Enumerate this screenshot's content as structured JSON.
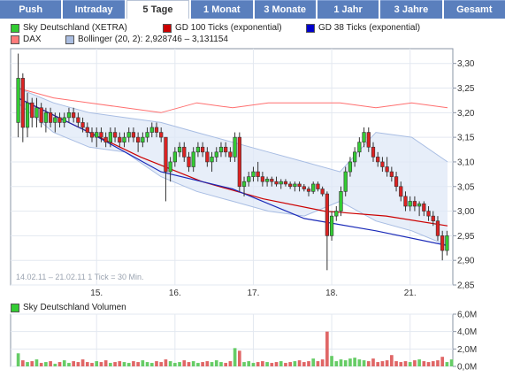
{
  "tabs": [
    {
      "label": "Push",
      "active": false
    },
    {
      "label": "Intraday",
      "active": false
    },
    {
      "label": "5 Tage",
      "active": true
    },
    {
      "label": "1 Monat",
      "active": false
    },
    {
      "label": "3 Monate",
      "active": false
    },
    {
      "label": "1 Jahr",
      "active": false
    },
    {
      "label": "3 Jahre",
      "active": false
    },
    {
      "label": "Gesamt",
      "active": false
    }
  ],
  "legend": [
    {
      "label": "Sky Deutschland (XETRA)",
      "color": "#33cc33"
    },
    {
      "label": "GD 100 Ticks (exponential)",
      "color": "#cc0000"
    },
    {
      "label": "GD 38 Ticks (exponential)",
      "color": "#0000cc"
    },
    {
      "label": "DAX",
      "color": "#ff7b7b"
    },
    {
      "label": "Bollinger (20, 2): 2,928746 – 3,131154",
      "color": "#aabde0"
    }
  ],
  "info_text": "14.02.11 – 21.02.11    1 Tick = 30 Min.",
  "volume_legend": {
    "label": "Sky Deutschland Volumen",
    "color": "#33cc33"
  },
  "chart_data": [
    {
      "type": "candlestick",
      "title": "Sky Deutschland (XETRA)",
      "ylim": [
        2.85,
        3.33
      ],
      "y_ticks": [
        "3,30",
        "3,25",
        "3,20",
        "3,15",
        "3,10",
        "3,05",
        "3,00",
        "2,95",
        "2,90",
        "2,85"
      ],
      "y_tick_values": [
        3.3,
        3.25,
        3.2,
        3.15,
        3.1,
        3.05,
        3.0,
        2.95,
        2.9,
        2.85
      ],
      "x_ticks": [
        "15.",
        "16.",
        "17.",
        "18.",
        "21."
      ],
      "x_tick_index": [
        17,
        34,
        51,
        68,
        85
      ],
      "grid": true,
      "candles": [
        {
          "o": 3.18,
          "h": 3.32,
          "l": 3.15,
          "c": 3.27
        },
        {
          "o": 3.27,
          "h": 3.28,
          "l": 3.14,
          "c": 3.17
        },
        {
          "o": 3.17,
          "h": 3.24,
          "l": 3.15,
          "c": 3.22
        },
        {
          "o": 3.22,
          "h": 3.23,
          "l": 3.17,
          "c": 3.19
        },
        {
          "o": 3.19,
          "h": 3.23,
          "l": 3.17,
          "c": 3.21
        },
        {
          "o": 3.21,
          "h": 3.22,
          "l": 3.17,
          "c": 3.18
        },
        {
          "o": 3.18,
          "h": 3.21,
          "l": 3.16,
          "c": 3.2
        },
        {
          "o": 3.2,
          "h": 3.21,
          "l": 3.17,
          "c": 3.18
        },
        {
          "o": 3.18,
          "h": 3.2,
          "l": 3.16,
          "c": 3.19
        },
        {
          "o": 3.19,
          "h": 3.2,
          "l": 3.17,
          "c": 3.18
        },
        {
          "o": 3.18,
          "h": 3.2,
          "l": 3.17,
          "c": 3.19
        },
        {
          "o": 3.19,
          "h": 3.21,
          "l": 3.18,
          "c": 3.2
        },
        {
          "o": 3.2,
          "h": 3.21,
          "l": 3.18,
          "c": 3.19
        },
        {
          "o": 3.19,
          "h": 3.2,
          "l": 3.17,
          "c": 3.18
        },
        {
          "o": 3.18,
          "h": 3.19,
          "l": 3.16,
          "c": 3.17
        },
        {
          "o": 3.17,
          "h": 3.18,
          "l": 3.15,
          "c": 3.16
        },
        {
          "o": 3.16,
          "h": 3.17,
          "l": 3.14,
          "c": 3.15
        },
        {
          "o": 3.15,
          "h": 3.17,
          "l": 3.13,
          "c": 3.16
        },
        {
          "o": 3.16,
          "h": 3.17,
          "l": 3.14,
          "c": 3.15
        },
        {
          "o": 3.15,
          "h": 3.16,
          "l": 3.13,
          "c": 3.14
        },
        {
          "o": 3.14,
          "h": 3.17,
          "l": 3.13,
          "c": 3.16
        },
        {
          "o": 3.16,
          "h": 3.17,
          "l": 3.14,
          "c": 3.15
        },
        {
          "o": 3.15,
          "h": 3.16,
          "l": 3.13,
          "c": 3.14
        },
        {
          "o": 3.14,
          "h": 3.16,
          "l": 3.13,
          "c": 3.15
        },
        {
          "o": 3.15,
          "h": 3.17,
          "l": 3.14,
          "c": 3.16
        },
        {
          "o": 3.16,
          "h": 3.17,
          "l": 3.14,
          "c": 3.15
        },
        {
          "o": 3.15,
          "h": 3.16,
          "l": 3.12,
          "c": 3.14
        },
        {
          "o": 3.14,
          "h": 3.16,
          "l": 3.13,
          "c": 3.15
        },
        {
          "o": 3.15,
          "h": 3.17,
          "l": 3.14,
          "c": 3.16
        },
        {
          "o": 3.16,
          "h": 3.18,
          "l": 3.15,
          "c": 3.17
        },
        {
          "o": 3.17,
          "h": 3.18,
          "l": 3.15,
          "c": 3.16
        },
        {
          "o": 3.16,
          "h": 3.17,
          "l": 3.14,
          "c": 3.15
        },
        {
          "o": 3.15,
          "h": 3.15,
          "l": 3.02,
          "c": 3.08
        },
        {
          "o": 3.08,
          "h": 3.11,
          "l": 3.06,
          "c": 3.1
        },
        {
          "o": 3.1,
          "h": 3.13,
          "l": 3.09,
          "c": 3.12
        },
        {
          "o": 3.12,
          "h": 3.14,
          "l": 3.11,
          "c": 3.13
        },
        {
          "o": 3.13,
          "h": 3.14,
          "l": 3.1,
          "c": 3.11
        },
        {
          "o": 3.11,
          "h": 3.12,
          "l": 3.08,
          "c": 3.09
        },
        {
          "o": 3.09,
          "h": 3.13,
          "l": 3.08,
          "c": 3.12
        },
        {
          "o": 3.12,
          "h": 3.14,
          "l": 3.11,
          "c": 3.13
        },
        {
          "o": 3.13,
          "h": 3.14,
          "l": 3.11,
          "c": 3.12
        },
        {
          "o": 3.12,
          "h": 3.13,
          "l": 3.09,
          "c": 3.1
        },
        {
          "o": 3.1,
          "h": 3.12,
          "l": 3.08,
          "c": 3.11
        },
        {
          "o": 3.11,
          "h": 3.13,
          "l": 3.1,
          "c": 3.12
        },
        {
          "o": 3.12,
          "h": 3.14,
          "l": 3.11,
          "c": 3.13
        },
        {
          "o": 3.13,
          "h": 3.14,
          "l": 3.11,
          "c": 3.12
        },
        {
          "o": 3.12,
          "h": 3.13,
          "l": 3.1,
          "c": 3.11
        },
        {
          "o": 3.11,
          "h": 3.16,
          "l": 3.1,
          "c": 3.15
        },
        {
          "o": 3.15,
          "h": 3.16,
          "l": 3.04,
          "c": 3.05
        },
        {
          "o": 3.05,
          "h": 3.07,
          "l": 3.03,
          "c": 3.06
        },
        {
          "o": 3.06,
          "h": 3.08,
          "l": 3.05,
          "c": 3.07
        },
        {
          "o": 3.07,
          "h": 3.09,
          "l": 3.06,
          "c": 3.08
        },
        {
          "o": 3.08,
          "h": 3.1,
          "l": 3.06,
          "c": 3.07
        },
        {
          "o": 3.07,
          "h": 3.08,
          "l": 3.05,
          "c": 3.06
        },
        {
          "o": 3.06,
          "h": 3.07,
          "l": 3.05,
          "c": 3.065
        },
        {
          "o": 3.065,
          "h": 3.07,
          "l": 3.05,
          "c": 3.06
        },
        {
          "o": 3.06,
          "h": 3.07,
          "l": 3.05,
          "c": 3.055
        },
        {
          "o": 3.055,
          "h": 3.065,
          "l": 3.045,
          "c": 3.06
        },
        {
          "o": 3.06,
          "h": 3.065,
          "l": 3.05,
          "c": 3.055
        },
        {
          "o": 3.055,
          "h": 3.06,
          "l": 3.045,
          "c": 3.05
        },
        {
          "o": 3.05,
          "h": 3.06,
          "l": 3.04,
          "c": 3.055
        },
        {
          "o": 3.055,
          "h": 3.06,
          "l": 3.04,
          "c": 3.05
        },
        {
          "o": 3.05,
          "h": 3.055,
          "l": 3.04,
          "c": 3.045
        },
        {
          "o": 3.045,
          "h": 3.05,
          "l": 3.03,
          "c": 3.04
        },
        {
          "o": 3.04,
          "h": 3.06,
          "l": 3.035,
          "c": 3.055
        },
        {
          "o": 3.055,
          "h": 3.06,
          "l": 3.04,
          "c": 3.045
        },
        {
          "o": 3.045,
          "h": 3.05,
          "l": 3.03,
          "c": 3.035
        },
        {
          "o": 3.035,
          "h": 3.04,
          "l": 2.88,
          "c": 2.95
        },
        {
          "o": 2.95,
          "h": 3.0,
          "l": 2.94,
          "c": 2.99
        },
        {
          "o": 2.99,
          "h": 3.01,
          "l": 2.98,
          "c": 3.0
        },
        {
          "o": 3.0,
          "h": 3.05,
          "l": 2.99,
          "c": 3.04
        },
        {
          "o": 3.04,
          "h": 3.09,
          "l": 3.03,
          "c": 3.08
        },
        {
          "o": 3.08,
          "h": 3.11,
          "l": 3.07,
          "c": 3.1
        },
        {
          "o": 3.1,
          "h": 3.13,
          "l": 3.09,
          "c": 3.12
        },
        {
          "o": 3.12,
          "h": 3.15,
          "l": 3.11,
          "c": 3.14
        },
        {
          "o": 3.14,
          "h": 3.17,
          "l": 3.13,
          "c": 3.16
        },
        {
          "o": 3.16,
          "h": 3.17,
          "l": 3.12,
          "c": 3.13
        },
        {
          "o": 3.13,
          "h": 3.14,
          "l": 3.1,
          "c": 3.11
        },
        {
          "o": 3.11,
          "h": 3.12,
          "l": 3.09,
          "c": 3.1
        },
        {
          "o": 3.1,
          "h": 3.11,
          "l": 3.08,
          "c": 3.09
        },
        {
          "o": 3.09,
          "h": 3.11,
          "l": 3.07,
          "c": 3.08
        },
        {
          "o": 3.08,
          "h": 3.09,
          "l": 3.06,
          "c": 3.07
        },
        {
          "o": 3.07,
          "h": 3.08,
          "l": 3.04,
          "c": 3.05
        },
        {
          "o": 3.05,
          "h": 3.06,
          "l": 3.02,
          "c": 3.03
        },
        {
          "o": 3.03,
          "h": 3.04,
          "l": 3.0,
          "c": 3.01
        },
        {
          "o": 3.01,
          "h": 3.03,
          "l": 3.0,
          "c": 3.02
        },
        {
          "o": 3.02,
          "h": 3.03,
          "l": 3.0,
          "c": 3.01
        },
        {
          "o": 3.01,
          "h": 3.02,
          "l": 2.99,
          "c": 3.015
        },
        {
          "o": 3.015,
          "h": 3.02,
          "l": 2.99,
          "c": 3.0
        },
        {
          "o": 3.0,
          "h": 3.01,
          "l": 2.98,
          "c": 2.99
        },
        {
          "o": 2.99,
          "h": 3.0,
          "l": 2.97,
          "c": 2.98
        },
        {
          "o": 2.98,
          "h": 2.99,
          "l": 2.94,
          "c": 2.95
        },
        {
          "o": 2.95,
          "h": 2.96,
          "l": 2.9,
          "c": 2.92
        },
        {
          "o": 2.92,
          "h": 2.96,
          "l": 2.91,
          "c": 2.95
        }
      ],
      "gd100": [
        3.23,
        3.17,
        3.11,
        3.06,
        3.025,
        3.0,
        2.99,
        2.97
      ],
      "gd38": [
        3.23,
        3.16,
        3.08,
        3.045,
        2.985,
        2.96,
        2.93
      ],
      "bollinger_upper": [
        3.25,
        3.22,
        3.2,
        3.19,
        3.18,
        3.16,
        3.14,
        3.12,
        3.1,
        3.08,
        3.16,
        3.15,
        3.1
      ],
      "bollinger_lower": [
        3.22,
        3.16,
        3.13,
        3.12,
        3.07,
        3.04,
        3.02,
        3.0,
        2.99,
        3.02,
        2.98,
        2.96,
        2.93
      ],
      "dax": [
        3.25,
        3.23,
        3.22,
        3.21,
        3.2,
        3.22,
        3.21,
        3.22,
        3.22,
        3.22,
        3.21,
        3.22,
        3.21
      ]
    },
    {
      "type": "bar",
      "title": "Sky Deutschland Volumen",
      "ylim": [
        0,
        6.0
      ],
      "y_ticks": [
        "6,0M",
        "4,0M",
        "2,0M",
        "0,0M"
      ],
      "y_tick_values": [
        6.0,
        4.0,
        2.0,
        0.0
      ],
      "values": [
        1.5,
        0.7,
        0.5,
        0.6,
        0.8,
        0.4,
        0.5,
        0.6,
        0.3,
        0.5,
        0.7,
        0.4,
        0.6,
        0.5,
        0.8,
        0.5,
        0.4,
        0.6,
        0.5,
        0.7,
        0.4,
        0.5,
        0.6,
        0.5,
        0.4,
        0.6,
        0.5,
        0.7,
        0.5,
        0.4,
        0.6,
        0.5,
        0.8,
        0.6,
        0.4,
        0.5,
        0.7,
        0.5,
        0.6,
        0.4,
        0.5,
        0.6,
        0.5,
        0.7,
        0.5,
        0.4,
        0.6,
        2.1,
        1.8,
        0.5,
        0.6,
        0.4,
        0.5,
        0.6,
        0.5,
        0.4,
        0.5,
        0.6,
        0.4,
        0.5,
        0.6,
        0.7,
        0.5,
        0.6,
        0.9,
        0.6,
        0.8,
        4.0,
        1.2,
        0.6,
        0.8,
        0.7,
        0.9,
        1.0,
        0.8,
        0.7,
        0.6,
        0.9,
        0.5,
        0.6,
        0.7,
        1.3,
        0.6,
        0.5,
        0.6,
        0.5,
        0.7,
        0.8,
        0.6,
        0.5,
        0.6,
        0.7,
        1.1,
        0.5,
        0.8
      ]
    }
  ]
}
